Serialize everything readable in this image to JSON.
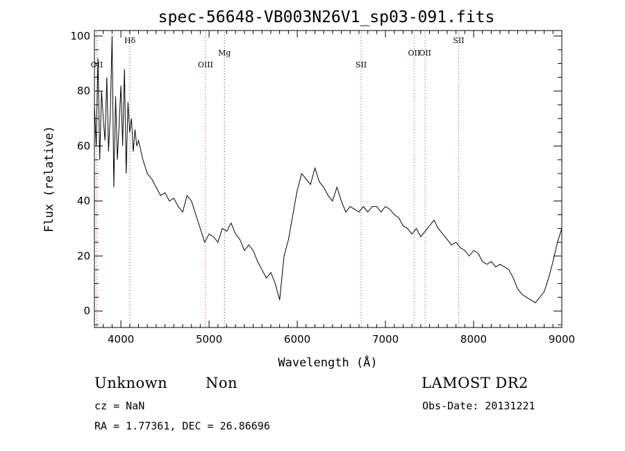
{
  "chart_data": {
    "type": "line",
    "title": "spec-56648-VB003N26V1_sp03-091.fits",
    "xlabel": "Wavelength (Å)",
    "ylabel": "Flux (relative)",
    "xlim": [
      3700,
      9000
    ],
    "ylim": [
      -6,
      102
    ],
    "x_ticks": [
      4000,
      5000,
      6000,
      7000,
      8000,
      9000
    ],
    "y_ticks": [
      0,
      20,
      40,
      60,
      80,
      100
    ],
    "grid": false,
    "series": [
      {
        "x": [
          3700,
          3720,
          3740,
          3760,
          3780,
          3800,
          3820,
          3840,
          3860,
          3880,
          3900,
          3920,
          3940,
          3960,
          3980,
          4000,
          4020,
          4040,
          4060,
          4080,
          4100,
          4120,
          4140,
          4160,
          4180,
          4200,
          4250,
          4300,
          4350,
          4400,
          4450,
          4500,
          4550,
          4600,
          4650,
          4700,
          4750,
          4800,
          4850,
          4900,
          4950,
          5000,
          5050,
          5100,
          5150,
          5200,
          5250,
          5300,
          5350,
          5400,
          5450,
          5500,
          5550,
          5600,
          5650,
          5700,
          5750,
          5800,
          5850,
          5900,
          5950,
          6000,
          6050,
          6100,
          6150,
          6200,
          6250,
          6300,
          6350,
          6400,
          6450,
          6500,
          6550,
          6600,
          6650,
          6700,
          6750,
          6800,
          6850,
          6900,
          6950,
          7000,
          7050,
          7100,
          7150,
          7200,
          7250,
          7300,
          7350,
          7400,
          7450,
          7500,
          7550,
          7600,
          7650,
          7700,
          7750,
          7800,
          7850,
          7900,
          7950,
          8000,
          8050,
          8100,
          8150,
          8200,
          8250,
          8300,
          8350,
          8400,
          8450,
          8500,
          8550,
          8600,
          8650,
          8700,
          8750,
          8800,
          8850,
          8900,
          8950,
          9000
        ],
        "y": [
          75,
          60,
          92,
          55,
          80,
          70,
          62,
          85,
          58,
          72,
          100,
          45,
          78,
          55,
          68,
          82,
          60,
          88,
          50,
          76,
          65,
          70,
          58,
          66,
          60,
          62,
          55,
          50,
          48,
          45,
          42,
          43,
          40,
          41,
          38,
          36,
          42,
          40,
          35,
          30,
          25,
          28,
          27,
          25,
          30,
          29,
          32,
          28,
          26,
          22,
          24,
          22,
          18,
          15,
          12,
          14,
          10,
          4,
          20,
          26,
          35,
          44,
          50,
          48,
          46,
          52,
          47,
          45,
          42,
          40,
          45,
          40,
          36,
          38,
          37,
          36,
          38,
          36,
          38,
          38,
          36,
          38,
          37,
          35,
          34,
          31,
          30,
          28,
          30,
          27,
          29,
          31,
          33,
          30,
          28,
          26,
          24,
          25,
          23,
          22,
          20,
          22,
          21,
          18,
          17,
          18,
          16,
          17,
          16,
          15,
          12,
          8,
          6,
          5,
          4,
          3,
          5,
          7,
          12,
          18,
          25,
          30
        ]
      }
    ],
    "line_markers": [
      {
        "label": "OII",
        "x": 3727,
        "level": 3
      },
      {
        "label": "Hδ",
        "x": 4102,
        "level": 1
      },
      {
        "label": "OIII",
        "x": 4959,
        "level": 3
      },
      {
        "label": "Mg",
        "x": 5175,
        "level": 2
      },
      {
        "label": "SII",
        "x": 6724,
        "level": 3
      },
      {
        "label": "OII",
        "x": 7325,
        "level": 2
      },
      {
        "label": "OII",
        "x": 7450,
        "level": 2
      },
      {
        "label": "SII",
        "x": 7830,
        "level": 1
      }
    ],
    "marker_color_emission": "#cc3333",
    "marker_color_absorption": "#444444"
  },
  "info": {
    "class_label": "Unknown",
    "subclass_label": "Non",
    "survey_label": "LAMOST DR2",
    "cz_label": "cz = NaN",
    "obs_date_label": "Obs-Date: 20131221",
    "coords_label": "RA =   1.77361, DEC =  26.86696"
  }
}
